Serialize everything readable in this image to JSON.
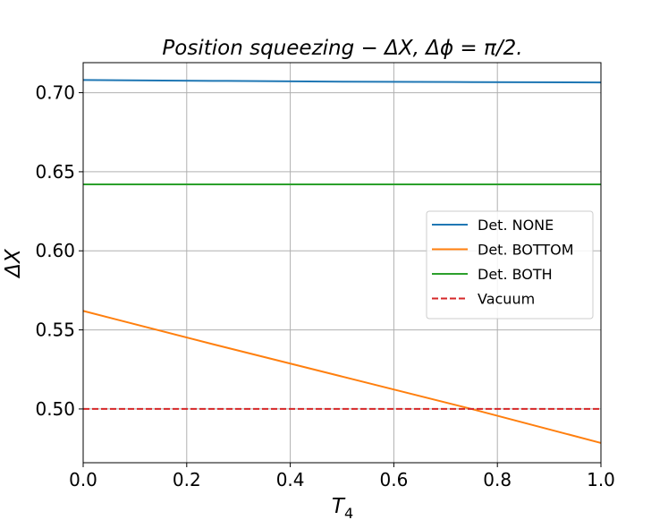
{
  "chart_data": {
    "type": "line",
    "title": "Position squeezing − ΔX, Δϕ = π/2.",
    "xlabel": "T",
    "xlabel_subscript": "4",
    "ylabel": "ΔX",
    "xlim": [
      0.0,
      1.0
    ],
    "ylim": [
      0.466,
      0.719
    ],
    "xticks": [
      0.0,
      0.2,
      0.4,
      0.6,
      0.8,
      1.0
    ],
    "xtick_labels": [
      "0.0",
      "0.2",
      "0.4",
      "0.6",
      "0.8",
      "1.0"
    ],
    "yticks": [
      0.5,
      0.55,
      0.6,
      0.65,
      0.7
    ],
    "ytick_labels": [
      "0.50",
      "0.55",
      "0.60",
      "0.65",
      "0.70"
    ],
    "grid": true,
    "legend_position": "center-right",
    "series": [
      {
        "name": "Det. NONE",
        "color": "#1f77b4",
        "dash": "solid",
        "x": [
          0.0,
          0.25,
          0.5,
          0.75,
          1.0
        ],
        "y": [
          0.708,
          0.7075,
          0.707,
          0.7067,
          0.7065
        ]
      },
      {
        "name": "Det. BOTTOM",
        "color": "#ff7f0e",
        "dash": "solid",
        "x": [
          0.0,
          0.25,
          0.5,
          0.75,
          1.0
        ],
        "y": [
          0.562,
          0.541,
          0.5205,
          0.5,
          0.4785
        ]
      },
      {
        "name": "Det. BOTH",
        "color": "#2ca02c",
        "dash": "solid",
        "x": [
          0.0,
          0.5,
          1.0
        ],
        "y": [
          0.642,
          0.642,
          0.642
        ]
      },
      {
        "name": "Vacuum",
        "color": "#d62728",
        "dash": "dashed",
        "x": [
          0.0,
          1.0
        ],
        "y": [
          0.5,
          0.5
        ]
      }
    ]
  }
}
